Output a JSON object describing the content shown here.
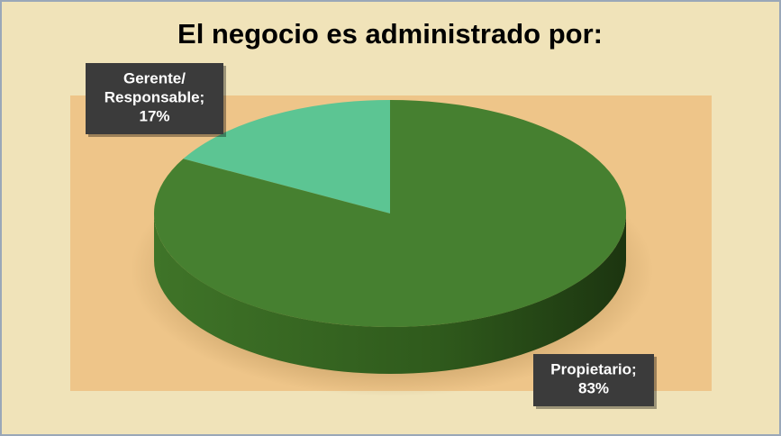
{
  "chart_data": {
    "type": "pie",
    "title": "El negocio es administrado por:",
    "values": [
      17,
      83
    ],
    "value_labels": [
      "Gerente/ Responsable; 17%",
      "Propietario; 83%"
    ],
    "colors": [
      "#5cc593",
      "#468030"
    ]
  }
}
